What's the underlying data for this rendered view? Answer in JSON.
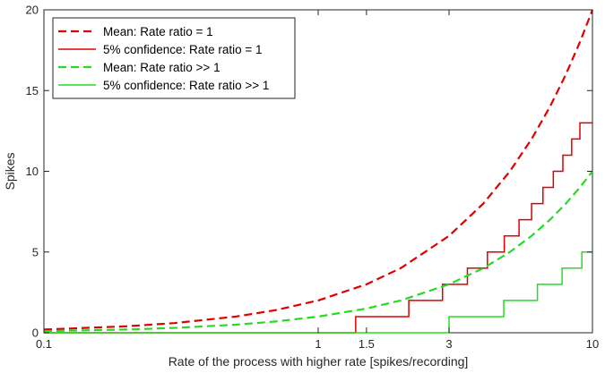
{
  "chart_data": {
    "type": "line",
    "xlabel": "Rate of the process with higher rate [spikes/recording]",
    "ylabel": "Spikes",
    "xscale": "log",
    "xlim": [
      0.1,
      10
    ],
    "ylim": [
      0,
      20
    ],
    "x_ticks": [
      0.1,
      1,
      1.5,
      3,
      10
    ],
    "x_tick_labels": [
      "0.1",
      "1",
      "1.5",
      "3",
      "10"
    ],
    "y_ticks": [
      0,
      5,
      10,
      15,
      20
    ],
    "y_tick_labels": [
      "0",
      "5",
      "10",
      "15",
      "20"
    ],
    "grid": false,
    "legend_position": "top-left",
    "series": [
      {
        "name": "Mean: Rate ratio = 1",
        "style": "dashed",
        "color": "#e00000",
        "x": [
          0.1,
          0.2,
          0.3,
          0.5,
          0.7,
          1,
          1.5,
          2,
          3,
          4,
          5,
          6,
          7,
          8,
          9,
          10
        ],
        "y": [
          0.2,
          0.4,
          0.6,
          1.0,
          1.4,
          2.0,
          3.0,
          4.0,
          6.0,
          8.0,
          10.0,
          12.0,
          14.0,
          16.0,
          18.0,
          20.0
        ]
      },
      {
        "name": "5% confidence: Rate ratio = 1",
        "style": "step",
        "color": "#e00000",
        "x": [
          0.1,
          1.37,
          1.37,
          2.14,
          2.14,
          2.84,
          2.84,
          3.5,
          3.5,
          4.14,
          4.14,
          4.77,
          4.77,
          5.4,
          5.4,
          6.0,
          6.0,
          6.6,
          6.6,
          7.2,
          7.2,
          7.8,
          7.8,
          8.4,
          8.4,
          9.0,
          9.0,
          9.55,
          9.55,
          10.0
        ],
        "y": [
          0,
          0,
          1,
          1,
          2,
          2,
          3,
          3,
          4,
          4,
          5,
          5,
          6,
          6,
          7,
          7,
          8,
          8,
          9,
          9,
          10,
          10,
          11,
          11,
          12,
          12,
          13,
          13,
          13,
          13
        ]
      },
      {
        "name": "Mean: Rate ratio >> 1",
        "style": "dashed",
        "color": "#22dd22",
        "x": [
          0.1,
          0.2,
          0.3,
          0.5,
          0.7,
          1,
          1.5,
          2,
          3,
          4,
          5,
          6,
          7,
          8,
          9,
          10
        ],
        "y": [
          0.1,
          0.2,
          0.3,
          0.5,
          0.7,
          1.0,
          1.5,
          2.0,
          3.0,
          4.0,
          5.0,
          6.0,
          7.0,
          8.0,
          9.0,
          10.0
        ]
      },
      {
        "name": "5% confidence: Rate ratio >> 1",
        "style": "step",
        "color": "#22dd22",
        "x": [
          0.1,
          3.0,
          3.0,
          4.75,
          4.75,
          6.3,
          6.3,
          7.75,
          7.75,
          9.15,
          9.15,
          10.0
        ],
        "y": [
          0,
          0,
          1,
          1,
          2,
          2,
          3,
          3,
          4,
          4,
          5,
          5
        ]
      }
    ]
  }
}
